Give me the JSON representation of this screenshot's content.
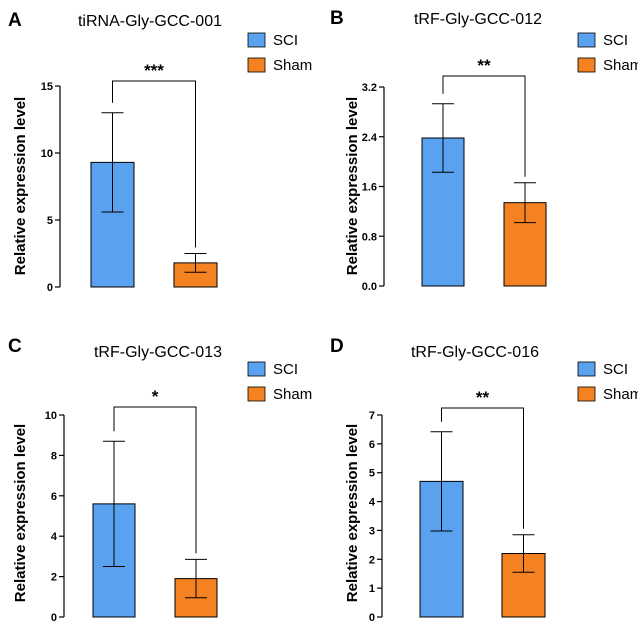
{
  "legend": {
    "sci": "SCI",
    "sham": "Sham"
  },
  "colors": {
    "sci": "#5aa2f0",
    "sham": "#f58220",
    "axis": "#000000"
  },
  "chart_data": [
    {
      "type": "bar",
      "panel": "A",
      "title": "tiRNA-Gly-GCC-001",
      "ylabel": "Relative expression level",
      "xlabel": "",
      "categories": [
        "SCI",
        "Sham"
      ],
      "values": [
        9.3,
        1.8
      ],
      "errors": [
        3.7,
        0.7
      ],
      "ylim": [
        0,
        15
      ],
      "yticks": [
        0,
        5,
        10,
        15
      ],
      "ytick_labels": [
        "0",
        "5",
        "10",
        "15"
      ],
      "significance": "***",
      "legend_position": "top-right"
    },
    {
      "type": "bar",
      "panel": "B",
      "title": "tRF-Gly-GCC-012",
      "ylabel": "Relative expression level",
      "xlabel": "",
      "categories": [
        "SCI",
        "Sham"
      ],
      "values": [
        2.38,
        1.34
      ],
      "errors": [
        0.55,
        0.32
      ],
      "ylim": [
        0,
        3.2
      ],
      "yticks": [
        0,
        0.8,
        1.6,
        2.4,
        3.2
      ],
      "ytick_labels": [
        "0.0",
        "0.8",
        "1.6",
        "2.4",
        "3.2"
      ],
      "significance": "**",
      "legend_position": "top-right"
    },
    {
      "type": "bar",
      "panel": "C",
      "title": "tRF-Gly-GCC-013",
      "ylabel": "Relative expression level",
      "xlabel": "",
      "categories": [
        "SCI",
        "Sham"
      ],
      "values": [
        5.6,
        1.9
      ],
      "errors": [
        3.1,
        0.95
      ],
      "ylim": [
        0,
        10
      ],
      "yticks": [
        0,
        2,
        4,
        6,
        8,
        10
      ],
      "ytick_labels": [
        "0",
        "2",
        "4",
        "6",
        "8",
        "10"
      ],
      "significance": "*",
      "legend_position": "top-right"
    },
    {
      "type": "bar",
      "panel": "D",
      "title": "tRF-Gly-GCC-016",
      "ylabel": "Relative expression level",
      "xlabel": "",
      "categories": [
        "SCI",
        "Sham"
      ],
      "values": [
        4.7,
        2.2
      ],
      "errors": [
        1.72,
        0.65
      ],
      "ylim": [
        0,
        7
      ],
      "yticks": [
        0,
        1,
        2,
        3,
        4,
        5,
        6,
        7
      ],
      "ytick_labels": [
        "0",
        "1",
        "2",
        "3",
        "4",
        "5",
        "6",
        "7"
      ],
      "significance": "**",
      "legend_position": "top-right"
    }
  ]
}
